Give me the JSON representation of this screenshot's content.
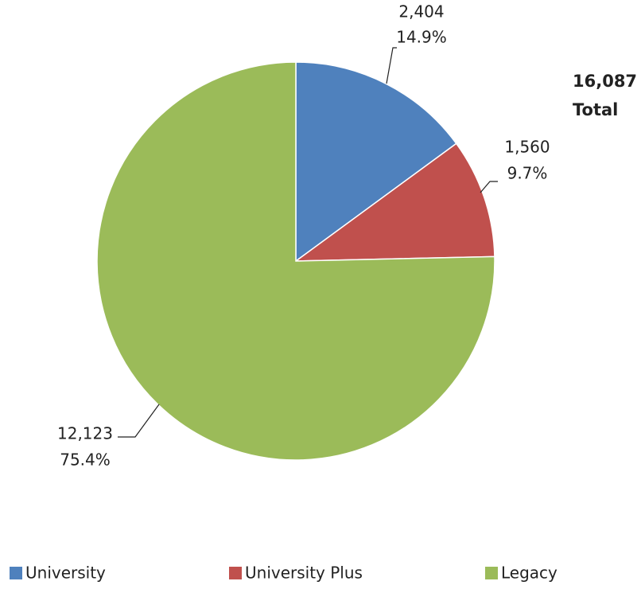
{
  "chart_data": {
    "type": "pie",
    "categories": [
      "University",
      "University Plus",
      "Legacy"
    ],
    "values": [
      2404,
      1560,
      12123
    ],
    "value_labels": [
      "2,404",
      "1,560",
      "12,123"
    ],
    "percents": [
      14.9,
      9.7,
      75.4
    ],
    "percent_labels": [
      "14.9%",
      "9.7%",
      "75.4%"
    ],
    "colors": [
      "#4f81bd",
      "#c0504d",
      "#9bbb59"
    ],
    "annotations": [
      "16,087",
      "Total"
    ],
    "legend": "bottom"
  }
}
